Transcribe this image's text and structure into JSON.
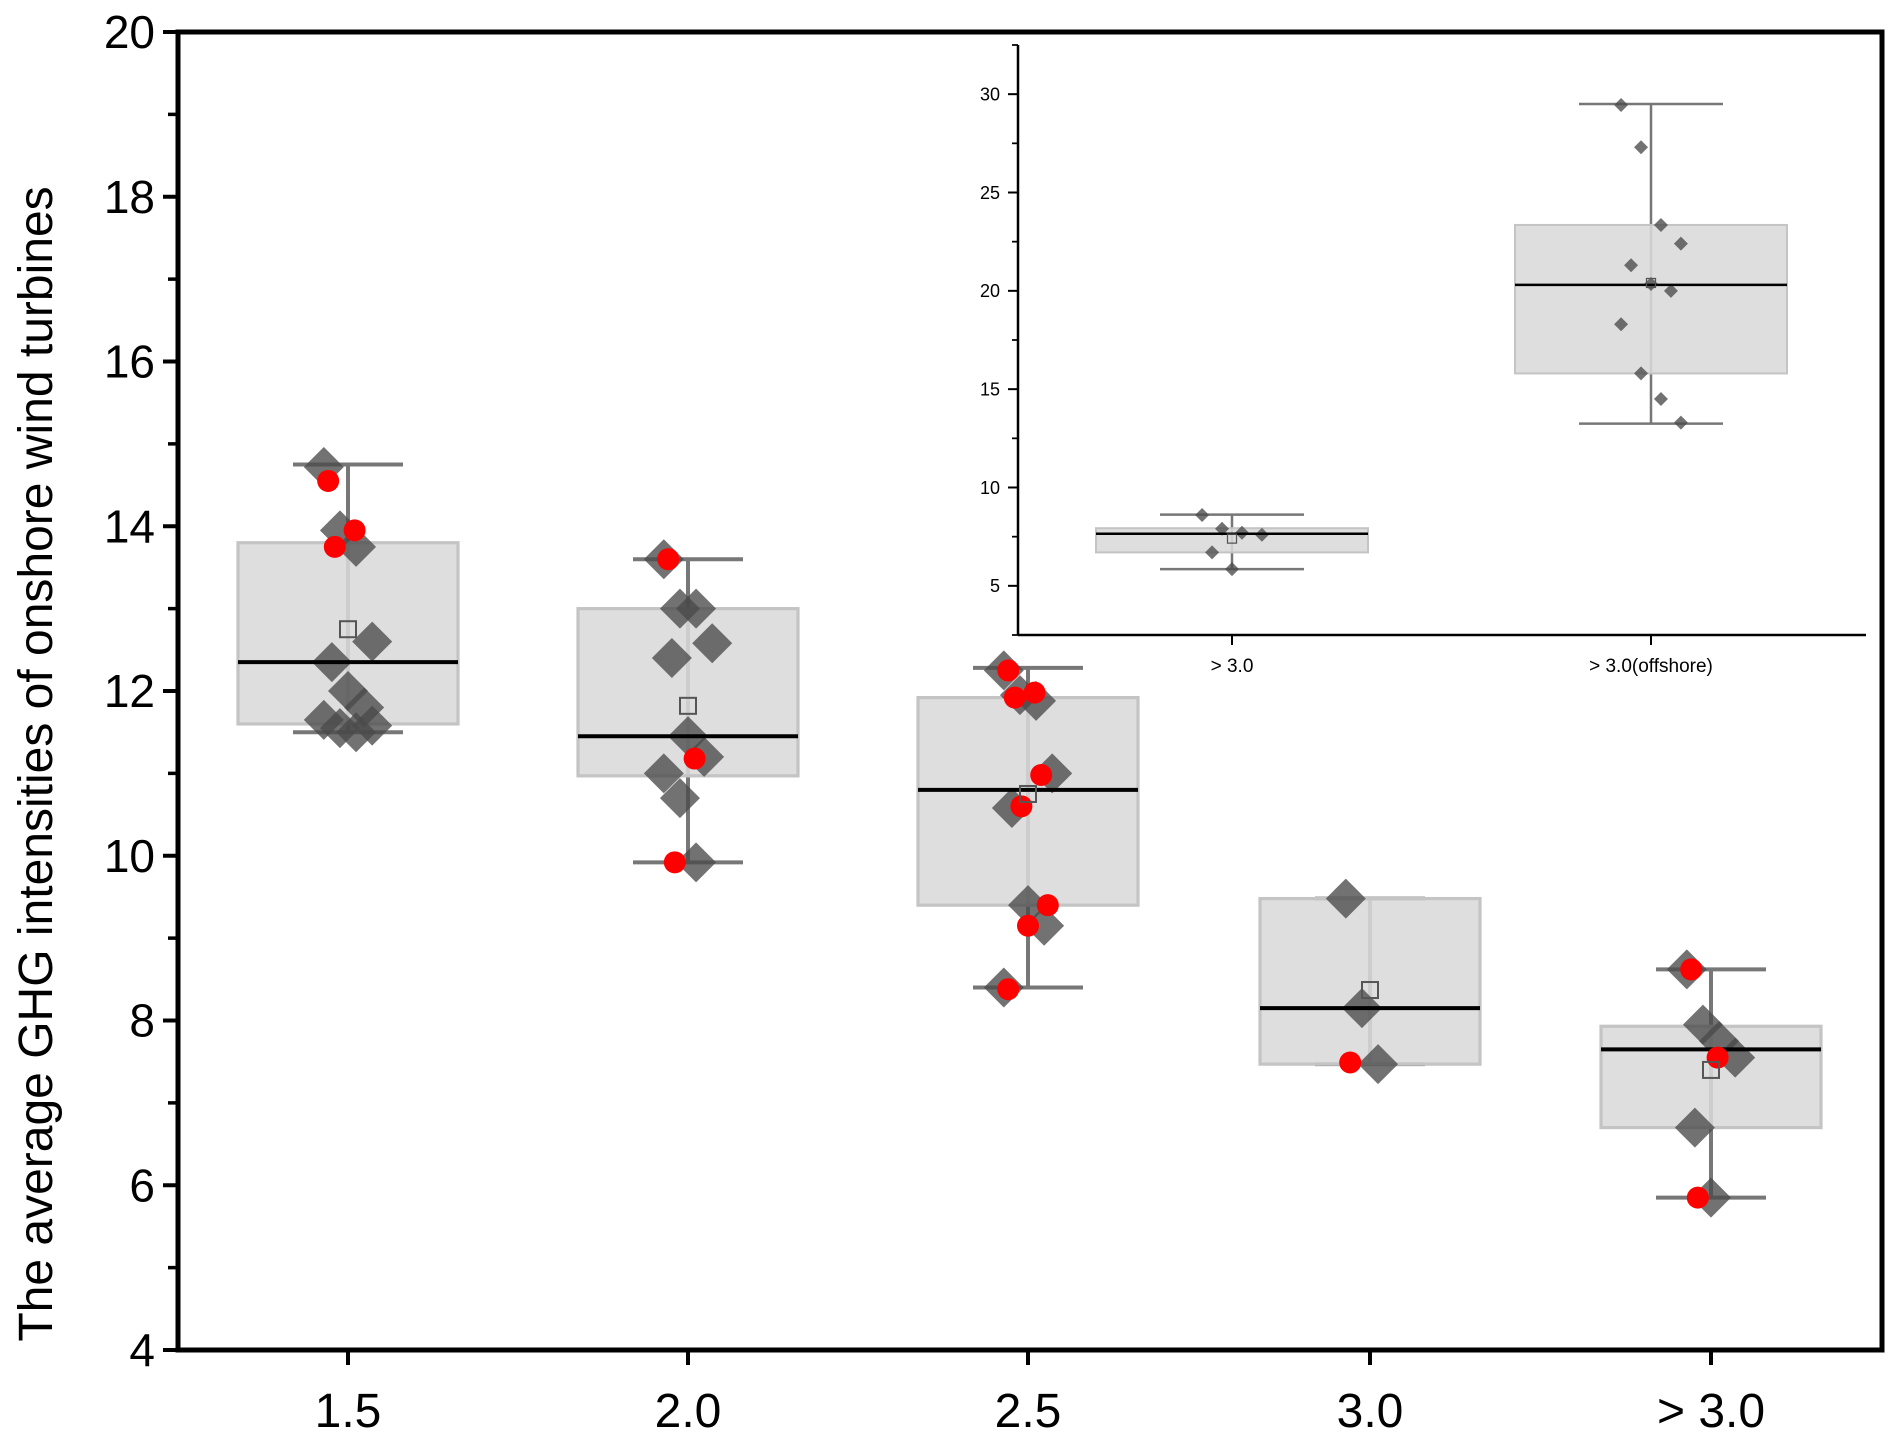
{
  "chart_data": [
    {
      "id": "main",
      "type": "box",
      "title": "",
      "xlabel": "",
      "ylabel": "The average GHG intensities of onshore wind turbines",
      "ylim": [
        4,
        20
      ],
      "yticks": [
        4,
        6,
        8,
        10,
        12,
        14,
        16,
        18,
        20
      ],
      "categories": [
        "1.5",
        "2.0",
        "2.5",
        "3.0",
        "> 3.0"
      ],
      "boxes": [
        {
          "category": "1.5",
          "whisker_low": 11.5,
          "q1": 11.6,
          "median": 12.35,
          "q3": 13.8,
          "whisker_high": 14.75,
          "mean": 12.75
        },
        {
          "category": "2.0",
          "whisker_low": 9.92,
          "q1": 10.97,
          "median": 11.45,
          "q3": 13.0,
          "whisker_high": 13.6,
          "mean": 11.82
        },
        {
          "category": "2.5",
          "whisker_low": 8.4,
          "q1": 9.4,
          "median": 10.8,
          "q3": 11.92,
          "whisker_high": 12.28,
          "mean": 10.75
        },
        {
          "category": "3.0",
          "whisker_low": 7.47,
          "q1": 7.47,
          "median": 8.15,
          "q3": 9.48,
          "whisker_high": 9.48,
          "mean": 8.37
        },
        {
          "category": "> 3.0",
          "whisker_low": 5.85,
          "q1": 6.7,
          "median": 7.65,
          "q3": 7.93,
          "whisker_high": 8.62,
          "mean": 7.4
        }
      ],
      "points": [
        {
          "category": "1.5",
          "values": [
            14.72,
            13.95,
            13.75,
            12.6,
            12.35,
            12.0,
            11.8,
            11.65,
            11.55,
            11.5,
            11.58
          ]
        },
        {
          "category": "2.0",
          "values": [
            13.6,
            13.0,
            13.0,
            12.58,
            12.4,
            11.45,
            11.2,
            11.0,
            10.7,
            9.92
          ]
        },
        {
          "category": "2.5",
          "values": [
            12.25,
            11.95,
            11.88,
            11.0,
            10.58,
            9.4,
            9.15,
            8.4
          ]
        },
        {
          "category": "3.0",
          "values": [
            9.48,
            8.15,
            7.47
          ]
        },
        {
          "category": "> 3.0",
          "values": [
            8.62,
            7.95,
            7.75,
            7.55,
            6.7,
            5.85
          ]
        }
      ],
      "highlighted_points": [
        {
          "category": "1.5",
          "values": [
            14.55,
            13.95,
            13.75
          ]
        },
        {
          "category": "2.0",
          "values": [
            13.6,
            11.18,
            9.92
          ]
        },
        {
          "category": "2.5",
          "values": [
            12.25,
            11.98,
            11.92,
            10.98,
            10.6,
            9.4,
            9.15,
            8.38
          ]
        },
        {
          "category": "3.0",
          "values": [
            7.49
          ]
        },
        {
          "category": "> 3.0",
          "values": [
            8.62,
            7.55,
            5.85
          ]
        }
      ]
    },
    {
      "id": "inset",
      "type": "box",
      "title": "",
      "xlabel": "",
      "ylabel": "",
      "ylim": [
        2.5,
        32.5
      ],
      "yticks": [
        5,
        10,
        15,
        20,
        25,
        30
      ],
      "categories": [
        "> 3.0",
        "> 3.0(offshore)"
      ],
      "boxes": [
        {
          "category": "> 3.0",
          "whisker_low": 5.85,
          "q1": 6.7,
          "median": 7.65,
          "q3": 7.93,
          "whisker_high": 8.62,
          "mean": 7.4
        },
        {
          "category": "> 3.0(offshore)",
          "whisker_low": 13.25,
          "q1": 15.8,
          "median": 20.3,
          "q3": 23.35,
          "whisker_high": 29.5,
          "mean": 20.4
        }
      ],
      "points": [
        {
          "category": "> 3.0",
          "values": [
            8.6,
            7.9,
            7.7,
            7.6,
            6.7,
            5.85
          ]
        },
        {
          "category": "> 3.0(offshore)",
          "values": [
            29.45,
            27.3,
            23.35,
            22.4,
            21.3,
            20.35,
            20.0,
            18.3,
            15.8,
            14.5,
            13.3
          ]
        }
      ],
      "highlighted_points": []
    }
  ],
  "colors": {
    "box_fill": "#d9d9d9",
    "box_edge": "#c4c4c4",
    "whisker": "#777777",
    "median": "#000000",
    "point": "#4a4a4a",
    "highlight": "#ff0000",
    "axis": "#000000"
  }
}
